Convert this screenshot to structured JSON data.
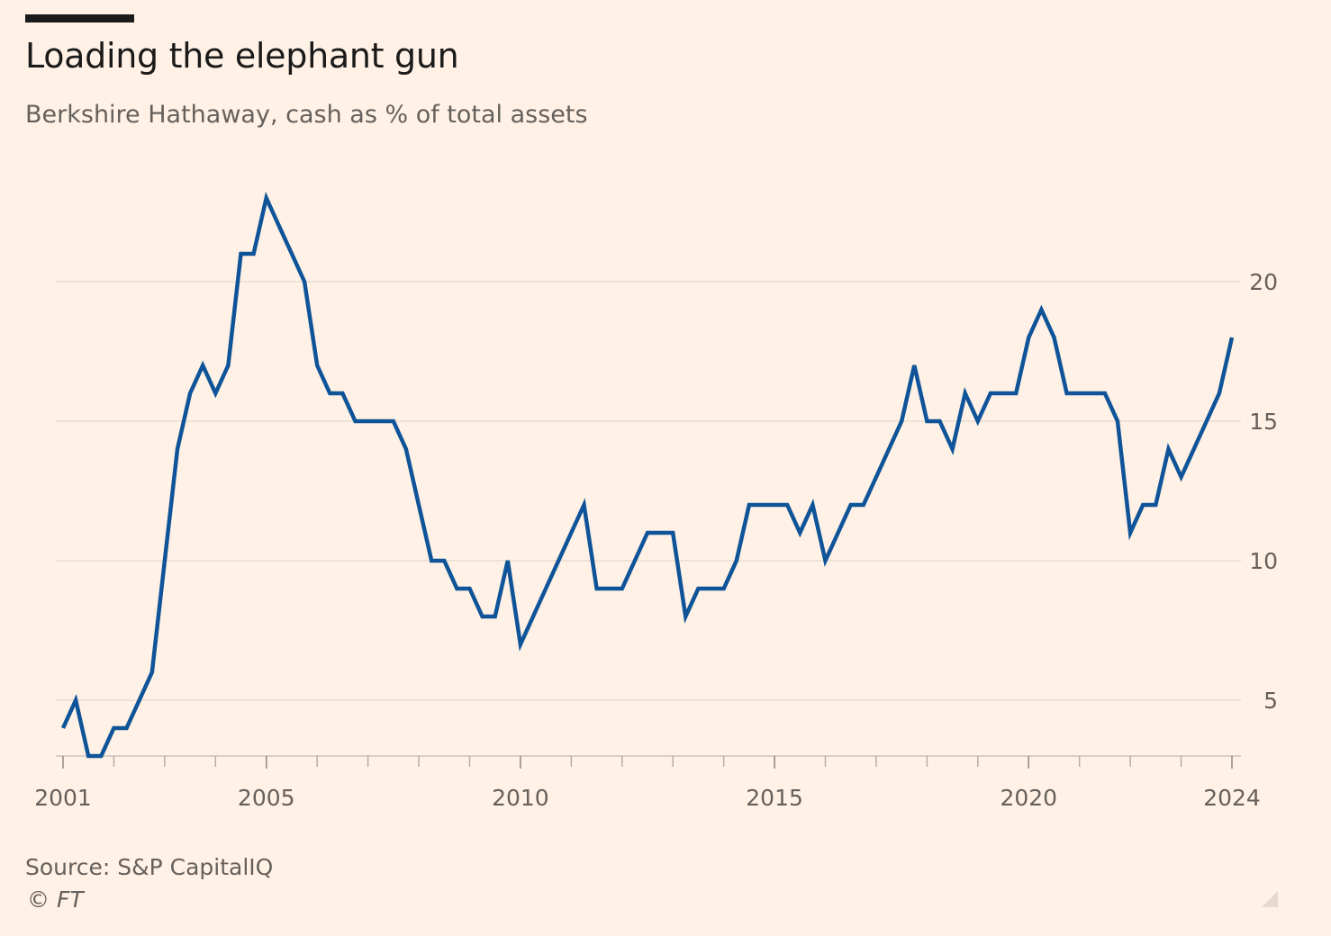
{
  "header": {
    "title": "Loading the elephant gun",
    "subtitle": "Berkshire Hathaway, cash as % of total assets"
  },
  "footer": {
    "source": "Source: S&P CapitalIQ",
    "copyright": "© FT"
  },
  "chart_data": {
    "type": "line",
    "title": "Loading the elephant gun",
    "subtitle": "Berkshire Hathaway, cash as % of total assets",
    "xlabel": "",
    "ylabel": "",
    "x_ticks": [
      "2001",
      "2005",
      "2010",
      "2015",
      "2020",
      "2024"
    ],
    "y_ticks": [
      5,
      10,
      15,
      20
    ],
    "ylim": [
      3,
      23
    ],
    "xlim": [
      2001,
      2024
    ],
    "y_axis_side": "right",
    "grid": "horizontal",
    "line_color": "#0f5499",
    "series": [
      {
        "values": [
          [
            2001.0,
            4
          ],
          [
            2001.25,
            5
          ],
          [
            2001.5,
            3
          ],
          [
            2001.75,
            3
          ],
          [
            2002.0,
            4
          ],
          [
            2002.25,
            4
          ],
          [
            2002.5,
            5
          ],
          [
            2002.75,
            6
          ],
          [
            2003.0,
            10
          ],
          [
            2003.25,
            14
          ],
          [
            2003.5,
            16
          ],
          [
            2003.75,
            17
          ],
          [
            2004.0,
            16
          ],
          [
            2004.25,
            17
          ],
          [
            2004.5,
            21
          ],
          [
            2004.75,
            21
          ],
          [
            2005.0,
            23
          ],
          [
            2005.25,
            22
          ],
          [
            2005.5,
            21
          ],
          [
            2005.75,
            20
          ],
          [
            2006.0,
            17
          ],
          [
            2006.25,
            16
          ],
          [
            2006.5,
            16
          ],
          [
            2006.75,
            15
          ],
          [
            2007.0,
            15
          ],
          [
            2007.25,
            15
          ],
          [
            2007.5,
            15
          ],
          [
            2007.75,
            14
          ],
          [
            2008.0,
            12
          ],
          [
            2008.25,
            10
          ],
          [
            2008.5,
            10
          ],
          [
            2008.75,
            9
          ],
          [
            2009.0,
            9
          ],
          [
            2009.25,
            8
          ],
          [
            2009.5,
            8
          ],
          [
            2009.75,
            10
          ],
          [
            2010.0,
            7
          ],
          [
            2010.25,
            8
          ],
          [
            2010.5,
            9
          ],
          [
            2010.75,
            10
          ],
          [
            2011.0,
            11
          ],
          [
            2011.25,
            12
          ],
          [
            2011.5,
            9
          ],
          [
            2011.75,
            9
          ],
          [
            2012.0,
            9
          ],
          [
            2012.25,
            10
          ],
          [
            2012.5,
            11
          ],
          [
            2012.75,
            11
          ],
          [
            2013.0,
            11
          ],
          [
            2013.25,
            8
          ],
          [
            2013.5,
            9
          ],
          [
            2013.75,
            9
          ],
          [
            2014.0,
            9
          ],
          [
            2014.25,
            10
          ],
          [
            2014.5,
            12
          ],
          [
            2014.75,
            12
          ],
          [
            2015.0,
            12
          ],
          [
            2015.25,
            12
          ],
          [
            2015.5,
            11
          ],
          [
            2015.75,
            12
          ],
          [
            2016.0,
            10
          ],
          [
            2016.25,
            11
          ],
          [
            2016.5,
            12
          ],
          [
            2016.75,
            12
          ],
          [
            2017.0,
            13
          ],
          [
            2017.25,
            14
          ],
          [
            2017.5,
            15
          ],
          [
            2017.75,
            17
          ],
          [
            2018.0,
            15
          ],
          [
            2018.25,
            15
          ],
          [
            2018.5,
            14
          ],
          [
            2018.75,
            16
          ],
          [
            2019.0,
            15
          ],
          [
            2019.25,
            16
          ],
          [
            2019.5,
            16
          ],
          [
            2019.75,
            16
          ],
          [
            2020.0,
            18
          ],
          [
            2020.25,
            19
          ],
          [
            2020.5,
            18
          ],
          [
            2020.75,
            16
          ],
          [
            2021.0,
            16
          ],
          [
            2021.25,
            16
          ],
          [
            2021.5,
            16
          ],
          [
            2021.75,
            15
          ],
          [
            2022.0,
            11
          ],
          [
            2022.25,
            12
          ],
          [
            2022.5,
            12
          ],
          [
            2022.75,
            14
          ],
          [
            2023.0,
            13
          ],
          [
            2023.25,
            14
          ],
          [
            2023.5,
            15
          ],
          [
            2023.75,
            16
          ],
          [
            2024.0,
            18
          ]
        ]
      }
    ]
  }
}
